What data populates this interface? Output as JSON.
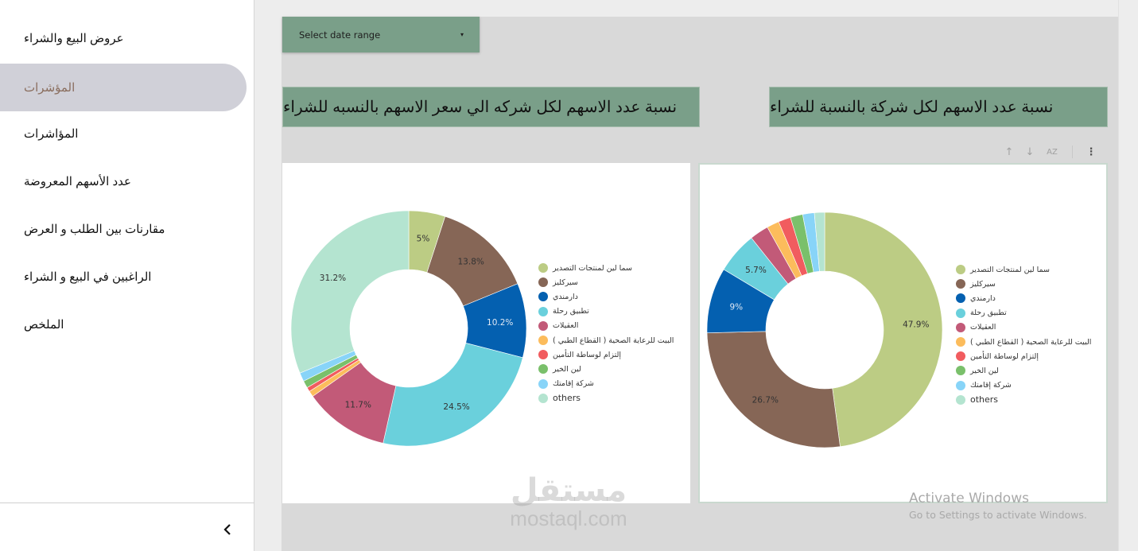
{
  "sidebar": {
    "items": [
      {
        "label": "عروض البيع والشراء",
        "active": false
      },
      {
        "label": "المؤشرات",
        "active": true
      },
      {
        "label": "المؤاشرات",
        "active": false
      },
      {
        "label": "عدد الأسهم المعروضة",
        "active": false
      },
      {
        "label": "مقارنات بين الطلب و العرض",
        "active": false
      },
      {
        "label": "الراغبين في البيع و الشراء",
        "active": false
      },
      {
        "label": "الملخص",
        "active": false
      }
    ],
    "collapse_icon": "chevron-left-icon"
  },
  "filters": {
    "date_range_label": "Select date range",
    "caret": "▾"
  },
  "charts_titles": {
    "left": "نسبة عدد الاسهم لكل شركه الي سعر الاسهم بالنسبه للشراء",
    "right": "نسبة عدد الاسهم لكل شركة بالنسبة للشراء"
  },
  "toolbar": {
    "sort_asc": "↑",
    "sort_desc": "↓",
    "sort_az": "AZ",
    "more": "⋮"
  },
  "legend": [
    {
      "label": "سما لين لمنتجات التصدير",
      "color": "#bccc84"
    },
    {
      "label": "سيركليز",
      "color": "#866656"
    },
    {
      "label": "دارمندي",
      "color": "#0460b0"
    },
    {
      "label": "تطبيق رحلة",
      "color": "#6ad0dc"
    },
    {
      "label": "العقيلات",
      "color": "#c25a78"
    },
    {
      "label": "البيت للرعاية الصحية ( القطاع الطبي )",
      "color": "#fcbc5c"
    },
    {
      "label": "إلتزام لوساطة التأمين",
      "color": "#f15c5f"
    },
    {
      "label": "لين الخير",
      "color": "#7ac06b"
    },
    {
      "label": "شركة إقامتك",
      "color": "#88d4f8"
    },
    {
      "label": "others",
      "color": "#b4e4d0"
    }
  ],
  "chart_data": [
    {
      "type": "pie",
      "title": "نسبة عدد الاسهم لكل شركه الي سعر الاسهم بالنسبه للشراء",
      "donut": true,
      "categories": [
        "سما لين لمنتجات التصدير",
        "سيركليز",
        "دارمندي",
        "تطبيق رحلة",
        "العقيلات",
        "البيت للرعاية الصحية ( القطاع الطبي )",
        "إلتزام لوساطة التأمين",
        "لين الخير",
        "شركة إقامتك",
        "others"
      ],
      "values": [
        5,
        13.8,
        10.2,
        24.5,
        11.7,
        0.8,
        0.6,
        1.0,
        1.2,
        31.2
      ],
      "labels": [
        "5%",
        "13.8%",
        "10.2%",
        "24.5%",
        "11.7%",
        "",
        "",
        "",
        "",
        "31.2%"
      ],
      "legend_position": "right"
    },
    {
      "type": "pie",
      "title": "نسبة عدد الاسهم لكل شركة بالنسبة للشراء",
      "donut": true,
      "categories": [
        "سما لين لمنتجات التصدير",
        "سيركليز",
        "دارمندي",
        "تطبيق رحلة",
        "العقيلات",
        "البيت للرعاية الصحية ( القطاع الطبي )",
        "إلتزام لوساطة التأمين",
        "لين الخير",
        "شركة إقامتك",
        "others"
      ],
      "values": [
        47.9,
        26.7,
        9,
        5.7,
        2.6,
        1.7,
        1.7,
        1.7,
        1.6,
        1.4
      ],
      "labels": [
        "47.9%",
        "26.7%",
        "9%",
        "5.7%",
        "",
        "",
        "",
        "",
        "",
        ""
      ],
      "legend_position": "right"
    }
  ],
  "watermark": {
    "arabic": "مستقل",
    "latin": "mostaql.com"
  },
  "activation": {
    "title": "Activate Windows",
    "subtitle": "Go to Settings to activate Windows."
  }
}
